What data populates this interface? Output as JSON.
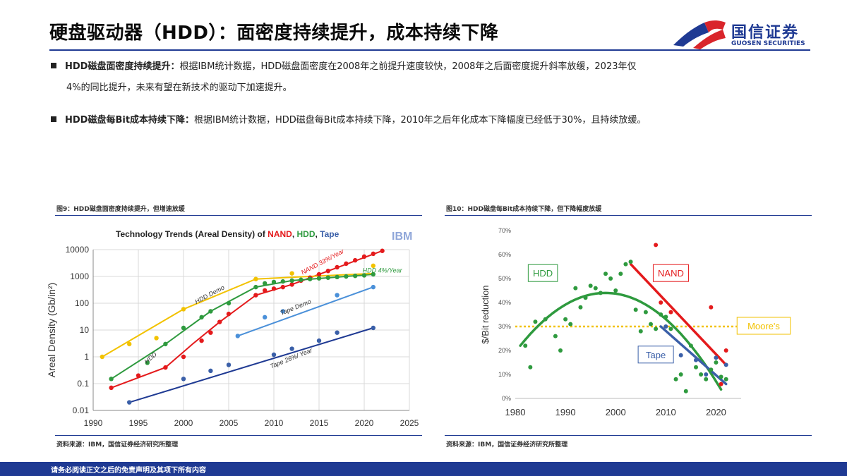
{
  "header": {
    "title": "硬盘驱动器（HDD）：面密度持续提升，成本持续下降",
    "logo_cn": "国信证券",
    "logo_en": "GUOSEN SECURITIES"
  },
  "bullets": [
    {
      "bold": "HDD磁盘面密度持续提升：",
      "text": "根据IBM统计数据，HDD磁盘面密度在2008年之前提升速度较快，2008年之后面密度提升斜率放缓，2023年仅",
      "text2": "4%的同比提升，未来有望在新技术的驱动下加速提升。"
    },
    {
      "bold": "HDD磁盘每Bit成本持续下降：",
      "text": "根据IBM统计数据，HDD磁盘每Bit成本持续下降，2010年之后年化成本下降幅度已经低于30%，且持续放缓。"
    }
  ],
  "figures": {
    "fig9_caption": "图9：HDD磁盘面密度持续提升，但增速放缓",
    "fig10_caption": "图10：HDD磁盘每Bit成本持续下降，但下降幅度放缓",
    "source_left": "资料来源：IBM，国信证券经济研究所整理",
    "source_right": "资料来源：IBM，国信证券经济研究所整理"
  },
  "footer": {
    "disclaimer": "请务必阅读正文之后的免责声明及其项下所有内容"
  },
  "colors": {
    "brand_blue": "#1f3a93",
    "logo_red": "#d9252b",
    "nand": "#e41a1c",
    "hdd": "#2e9a3e",
    "tape": "#3a5fa8",
    "trend_yellow": "#f2c200",
    "trend_lightblue": "#4a90d9"
  },
  "chart_data": [
    {
      "type": "scatter",
      "title_parts": [
        "Technology Trends (Areal Density) of ",
        "NAND",
        ", ",
        "HDD",
        ", ",
        "Tape"
      ],
      "watermark": "IBM",
      "xlabel": "",
      "ylabel": "Areal Density (Gb/in²)",
      "yscale": "log",
      "xlim": [
        1990,
        2025
      ],
      "ylim": [
        0.01,
        10000
      ],
      "xticks": [
        1990,
        1995,
        2000,
        2005,
        2010,
        2015,
        2020,
        2025
      ],
      "yticks": [
        "0.01",
        "0.1",
        "1",
        "10",
        "100",
        "1000",
        "10000"
      ],
      "series": [
        {
          "name": "NAND",
          "color": "#e41a1c",
          "x": [
            1992,
            1995,
            1998,
            2000,
            2002,
            2003,
            2004,
            2005,
            2008,
            2009,
            2010,
            2011,
            2012,
            2013,
            2014,
            2015,
            2016,
            2017,
            2018,
            2019,
            2020,
            2021,
            2022
          ],
          "y": [
            0.07,
            0.2,
            0.4,
            1,
            4,
            8,
            20,
            40,
            200,
            300,
            350,
            400,
            500,
            700,
            900,
            1200,
            1600,
            2200,
            3000,
            4000,
            5500,
            7000,
            9000
          ]
        },
        {
          "name": "HDD",
          "color": "#2e9a3e",
          "x": [
            1992,
            1996,
            1998,
            2000,
            2002,
            2003,
            2005,
            2008,
            2009,
            2010,
            2011,
            2012,
            2013,
            2014,
            2015,
            2016,
            2017,
            2018,
            2019,
            2020,
            2021
          ],
          "y": [
            0.15,
            0.6,
            3,
            12,
            30,
            50,
            100,
            400,
            550,
            620,
            650,
            700,
            750,
            800,
            850,
            900,
            950,
            1000,
            1050,
            1100,
            1200
          ]
        },
        {
          "name": "Tape",
          "color": "#3a5fa8",
          "x": [
            1994,
            2000,
            2003,
            2005,
            2010,
            2012,
            2015,
            2017,
            2021
          ],
          "y": [
            0.02,
            0.15,
            0.3,
            0.5,
            1.2,
            2,
            4,
            8,
            12
          ]
        },
        {
          "name": "Trend (yellow)",
          "color": "#f2c200",
          "x": [
            1991,
            1994,
            1997,
            2000,
            2008,
            2012,
            2021
          ],
          "y": [
            1,
            3,
            5,
            60,
            800,
            1300,
            2500
          ]
        },
        {
          "name": "Trend (light blue)",
          "color": "#4a90d9",
          "x": [
            2006,
            2009,
            2011,
            2017,
            2021
          ],
          "y": [
            6,
            30,
            50,
            200,
            400
          ]
        }
      ],
      "trend_lines": [
        {
          "color": "#e41a1c",
          "points": [
            [
              1992,
              0.07
            ],
            [
              1998,
              0.4
            ],
            [
              2001,
              3
            ],
            [
              2004,
              20
            ],
            [
              2008,
              200
            ],
            [
              2012,
              500
            ],
            [
              2022,
              9000
            ]
          ]
        },
        {
          "color": "#2e9a3e",
          "points": [
            [
              1992,
              0.15
            ],
            [
              1998,
              3
            ],
            [
              2003,
              50
            ],
            [
              2008,
              400
            ],
            [
              2012,
              700
            ],
            [
              2021,
              1200
            ]
          ]
        },
        {
          "color": "#1f3a93",
          "points": [
            [
              1994,
              0.02
            ],
            [
              2021,
              12
            ]
          ]
        },
        {
          "color": "#f2c200",
          "points": [
            [
              1991,
              1
            ],
            [
              2000,
              60
            ],
            [
              2008,
              800
            ],
            [
              2021,
              1300
            ]
          ]
        },
        {
          "color": "#4a90d9",
          "points": [
            [
              2006,
              6
            ],
            [
              2021,
              400
            ]
          ]
        }
      ],
      "annotations": [
        {
          "text": "NAND 33%/Year",
          "color": "#e41a1c",
          "x": 2015.5,
          "y": 3000,
          "angle": -28
        },
        {
          "text": "HDD 4%/Year",
          "color": "#2e9a3e",
          "x": 2022,
          "y": 1400,
          "angle": 0
        },
        {
          "text": "HDD Demo",
          "color": "#333333",
          "x": 2003,
          "y": 180,
          "angle": -28
        },
        {
          "text": "Tape Demo",
          "color": "#333333",
          "x": 2012.5,
          "y": 60,
          "angle": -22
        },
        {
          "text": "HDD",
          "color": "#333333",
          "x": 1996.5,
          "y": 0.8,
          "angle": -40
        },
        {
          "text": "Tape  26%/ Year",
          "color": "#333333",
          "x": 2012,
          "y": 0.75,
          "angle": -22
        }
      ]
    },
    {
      "type": "scatter",
      "ylabel": "$/Bit reduction",
      "xlabel": "",
      "xlim": [
        1980,
        2025
      ],
      "ylim": [
        0,
        70
      ],
      "xticks": [
        1980,
        1990,
        2000,
        2010,
        2020
      ],
      "yticks": [
        "0%",
        "10%",
        "20%",
        "30%",
        "40%",
        "50%",
        "60%",
        "70%"
      ],
      "reference_line": {
        "value": 30,
        "label": "Moore's",
        "color": "#f2c200"
      },
      "series": [
        {
          "name": "HDD",
          "color": "#2e9a3e",
          "x": [
            1982,
            1983,
            1984,
            1986,
            1988,
            1989,
            1990,
            1991,
            1992,
            1993,
            1994,
            1995,
            1996,
            1997,
            1998,
            1999,
            2000,
            2001,
            2002,
            2003,
            2004,
            2005,
            2006,
            2007,
            2008,
            2009,
            2010,
            2011,
            2012,
            2013,
            2014,
            2015,
            2016,
            2017,
            2018,
            2019,
            2020,
            2021,
            2022
          ],
          "y": [
            22,
            13,
            32,
            33,
            26,
            20,
            33,
            31,
            46,
            38,
            42,
            47,
            46,
            44,
            52,
            50,
            45,
            52,
            56,
            57,
            37,
            28,
            36,
            31,
            29,
            35,
            34,
            29,
            8,
            10,
            3,
            22,
            13,
            10,
            8,
            12,
            15,
            9,
            8
          ]
        },
        {
          "name": "NAND",
          "color": "#e41a1c",
          "x": [
            2008,
            2009,
            2011,
            2019,
            2021,
            2022
          ],
          "y": [
            64,
            40,
            36,
            38,
            6,
            20
          ]
        },
        {
          "name": "Tape",
          "color": "#3a5fa8",
          "x": [
            2010,
            2013,
            2016,
            2018,
            2020,
            2022
          ],
          "y": [
            30,
            18,
            16,
            10,
            17,
            14
          ]
        }
      ],
      "trend_lines": [
        {
          "name": "HDD",
          "color": "#2e9a3e",
          "type": "quadratic",
          "x0": 1981,
          "x1": 2021,
          "peak": [
            1998,
            44
          ],
          "start": [
            1981,
            22
          ],
          "end": [
            2021,
            0
          ]
        },
        {
          "name": "NAND",
          "color": "#e41a1c",
          "type": "linear",
          "points": [
            [
              2003,
              56
            ],
            [
              2022,
              14
            ]
          ]
        },
        {
          "name": "Tape",
          "color": "#3a5fa8",
          "type": "linear",
          "points": [
            [
              2009,
              30
            ],
            [
              2022,
              6
            ]
          ]
        }
      ],
      "labels": [
        {
          "text": "HDD",
          "color": "#2e9a3e",
          "x": 1985.5,
          "y": 52
        },
        {
          "text": "NAND",
          "color": "#e41a1c",
          "x": 2011,
          "y": 52
        },
        {
          "text": "Tape",
          "color": "#3a5fa8",
          "x": 2008,
          "y": 18
        },
        {
          "text": "Moore's",
          "color": "#f2c200",
          "x": 2029.5,
          "y": 30
        }
      ]
    }
  ]
}
